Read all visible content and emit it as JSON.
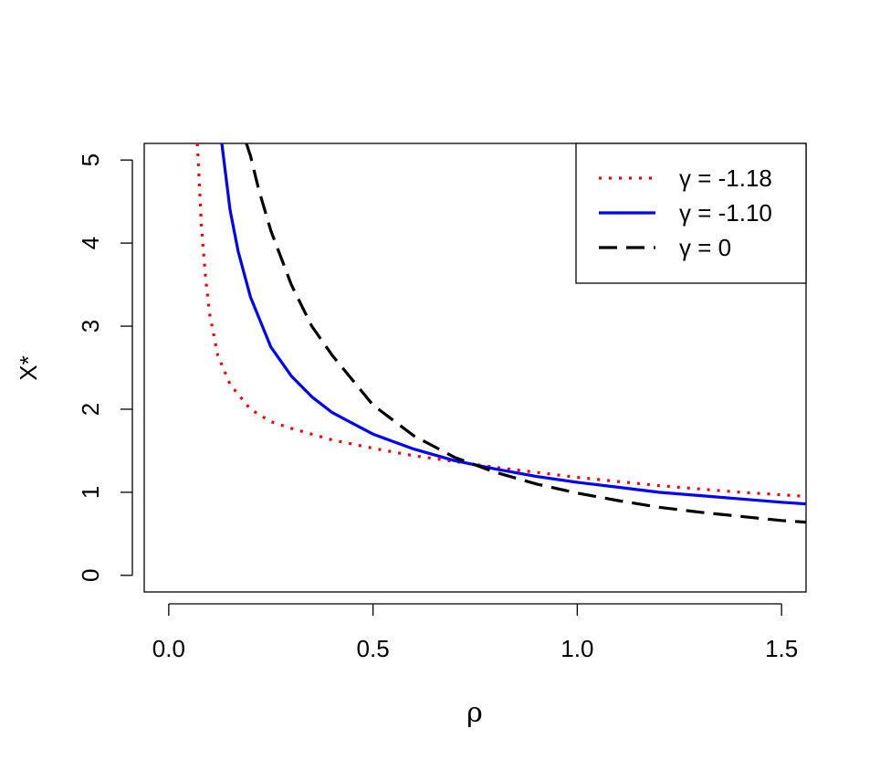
{
  "chart_data": {
    "type": "line",
    "title": "",
    "xlabel": "ρ",
    "ylabel": "X*",
    "xlim": [
      -0.06,
      1.56
    ],
    "ylim": [
      -0.2,
      5.2
    ],
    "x_ticks": [
      0.0,
      0.5,
      1.0,
      1.5
    ],
    "x_tick_labels": [
      "0.0",
      "0.5",
      "1.0",
      "1.5"
    ],
    "y_ticks": [
      0,
      1,
      2,
      3,
      4,
      5
    ],
    "y_tick_labels": [
      "0",
      "1",
      "2",
      "3",
      "4",
      "5"
    ],
    "grid": false,
    "legend_position": "top-right",
    "series": [
      {
        "name": "γ = -1.18",
        "color": "#ff0000",
        "line_style": "dotted",
        "x": [
          0.07,
          0.08,
          0.09,
          0.1,
          0.12,
          0.15,
          0.2,
          0.25,
          0.3,
          0.4,
          0.5,
          0.6,
          0.7,
          0.8,
          0.9,
          1.0,
          1.1,
          1.2,
          1.3,
          1.4,
          1.5,
          1.56
        ],
        "y": [
          5.2,
          4.2,
          3.6,
          3.15,
          2.65,
          2.3,
          2.0,
          1.85,
          1.77,
          1.63,
          1.53,
          1.44,
          1.37,
          1.3,
          1.24,
          1.18,
          1.13,
          1.08,
          1.04,
          1.0,
          0.97,
          0.95
        ]
      },
      {
        "name": "γ = -1.10",
        "color": "#0000ff",
        "line_style": "solid",
        "x": [
          0.13,
          0.14,
          0.15,
          0.17,
          0.2,
          0.25,
          0.3,
          0.35,
          0.4,
          0.5,
          0.6,
          0.7,
          0.8,
          0.9,
          1.0,
          1.1,
          1.2,
          1.3,
          1.4,
          1.5,
          1.56
        ],
        "y": [
          5.2,
          4.8,
          4.4,
          3.9,
          3.35,
          2.75,
          2.4,
          2.15,
          1.96,
          1.7,
          1.52,
          1.38,
          1.28,
          1.19,
          1.12,
          1.06,
          1.0,
          0.96,
          0.92,
          0.88,
          0.86
        ]
      },
      {
        "name": "γ = 0",
        "color": "#000000",
        "line_style": "dashed",
        "x": [
          0.19,
          0.2,
          0.22,
          0.25,
          0.3,
          0.35,
          0.4,
          0.5,
          0.6,
          0.7,
          0.8,
          0.9,
          1.0,
          1.1,
          1.2,
          1.3,
          1.4,
          1.5,
          1.56
        ],
        "y": [
          5.2,
          5.05,
          4.65,
          4.15,
          3.5,
          3.0,
          2.65,
          2.05,
          1.68,
          1.42,
          1.24,
          1.1,
          0.99,
          0.9,
          0.82,
          0.76,
          0.71,
          0.66,
          0.64
        ]
      }
    ]
  }
}
